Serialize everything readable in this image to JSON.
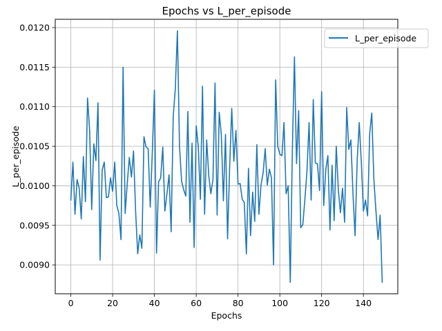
{
  "chart_data": {
    "type": "line",
    "title": "Epochs vs L_per_episode",
    "xlabel": "Epochs",
    "ylabel": "L_per_episode",
    "xlim": [
      -7.45,
      156.45
    ],
    "ylim": [
      0.008635,
      0.012105
    ],
    "xticks": [
      0,
      20,
      40,
      60,
      80,
      100,
      120,
      140
    ],
    "yticks": [
      0.009,
      0.0095,
      0.01,
      0.0105,
      0.011,
      0.0115,
      0.012
    ],
    "ytick_labels": [
      "0.0090",
      "0.0095",
      "0.0100",
      "0.0105",
      "0.0110",
      "0.0115",
      "0.0120"
    ],
    "grid": true,
    "legend_position": "upper-right",
    "color": "#1f77b4",
    "series": [
      {
        "name": "L_per_episode",
        "values": [
          0.00982,
          0.0103,
          0.00964,
          0.01008,
          0.00997,
          0.00958,
          0.01037,
          0.0098,
          0.01111,
          0.0107,
          0.0097,
          0.01053,
          0.01032,
          0.01105,
          0.00906,
          0.0102,
          0.0103,
          0.00985,
          0.00986,
          0.0101,
          0.00993,
          0.0103,
          0.00975,
          0.00965,
          0.00932,
          0.0115,
          0.00965,
          0.01003,
          0.01036,
          0.01011,
          0.01044,
          0.00968,
          0.00914,
          0.00938,
          0.00921,
          0.01062,
          0.01049,
          0.01047,
          0.00973,
          0.01043,
          0.01121,
          0.00915,
          0.01005,
          0.0101,
          0.01049,
          0.00968,
          0.0099,
          0.01014,
          0.00942,
          0.01088,
          0.01123,
          0.01196,
          0.0105,
          0.01006,
          0.00995,
          0.00987,
          0.01094,
          0.00954,
          0.01054,
          0.00922,
          0.01076,
          0.01049,
          0.00983,
          0.01126,
          0.00964,
          0.01058,
          0.01013,
          0.0099,
          0.01008,
          0.0113,
          0.00963,
          0.01093,
          0.01065,
          0.00981,
          0.01065,
          0.00933,
          0.01024,
          0.01098,
          0.01031,
          0.0107,
          0.01002,
          0.01003,
          0.00983,
          0.00979,
          0.00914,
          0.01022,
          0.00937,
          0.00992,
          0.00955,
          0.01052,
          0.00964,
          0.01001,
          0.01016,
          0.01047,
          0.01001,
          0.01021,
          0.0101,
          0.009,
          0.01134,
          0.0105,
          0.0104,
          0.01038,
          0.0108,
          0.0099,
          0.01,
          0.00878,
          0.01045,
          0.01163,
          0.01028,
          0.01095,
          0.00947,
          0.00951,
          0.00983,
          0.01019,
          0.0108,
          0.00982,
          0.01109,
          0.01029,
          0.01028,
          0.00994,
          0.01119,
          0.00975,
          0.01021,
          0.01038,
          0.00944,
          0.01026,
          0.00956,
          0.0105,
          0.00995,
          0.00966,
          0.00997,
          0.00954,
          0.01099,
          0.01046,
          0.01058,
          0.0099,
          0.00937,
          0.01031,
          0.0108,
          0.0103,
          0.00968,
          0.00982,
          0.00962,
          0.01066,
          0.01092,
          0.01008,
          0.00968,
          0.00932,
          0.00963,
          0.00878
        ]
      }
    ]
  }
}
